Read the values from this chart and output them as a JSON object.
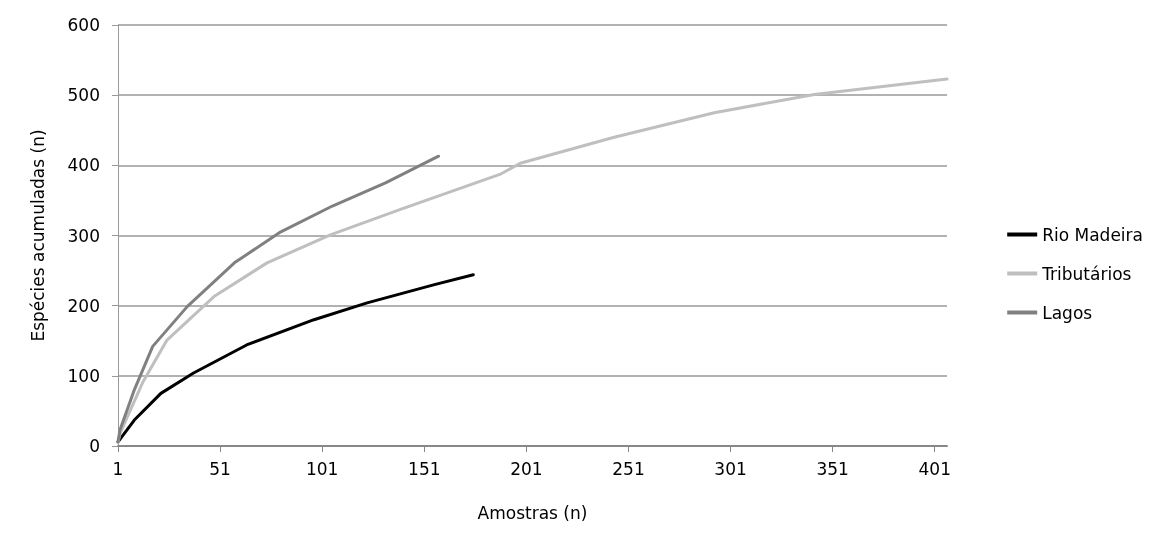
{
  "chart_data": {
    "type": "line",
    "xlabel": "Amostras (n)",
    "ylabel": "Espécies acumuladas (n)",
    "xlim": [
      1,
      407
    ],
    "xticks": [
      1,
      51,
      101,
      151,
      201,
      251,
      301,
      351,
      401
    ],
    "ylim": [
      0,
      600
    ],
    "yticks": [
      0,
      100,
      200,
      300,
      400,
      500,
      600
    ],
    "grid": "y",
    "legend": "right",
    "marker": "none",
    "line_style": "solid",
    "series": [
      {
        "name": "Rio Madeira",
        "color": "#000000",
        "x": [
          1,
          9,
          22,
          38,
          64,
          97,
          123,
          156,
          175
        ],
        "values": [
          6,
          37,
          75,
          104,
          144,
          180,
          204,
          230,
          244
        ]
      },
      {
        "name": "Tributários",
        "color": "#bfbfbf",
        "x": [
          1,
          2,
          13,
          25,
          48,
          74,
          105,
          139,
          188,
          198,
          244,
          293,
          342,
          407
        ],
        "values": [
          5,
          18,
          90,
          151,
          213,
          261,
          301,
          337,
          387,
          403,
          440,
          475,
          501,
          523
        ]
      },
      {
        "name": "Lagos",
        "color": "#808080",
        "x": [
          1,
          2,
          9,
          18,
          35,
          58,
          80,
          106,
          132,
          158
        ],
        "values": [
          6,
          23,
          80,
          142,
          199,
          261,
          304,
          342,
          375,
          413
        ]
      }
    ]
  }
}
